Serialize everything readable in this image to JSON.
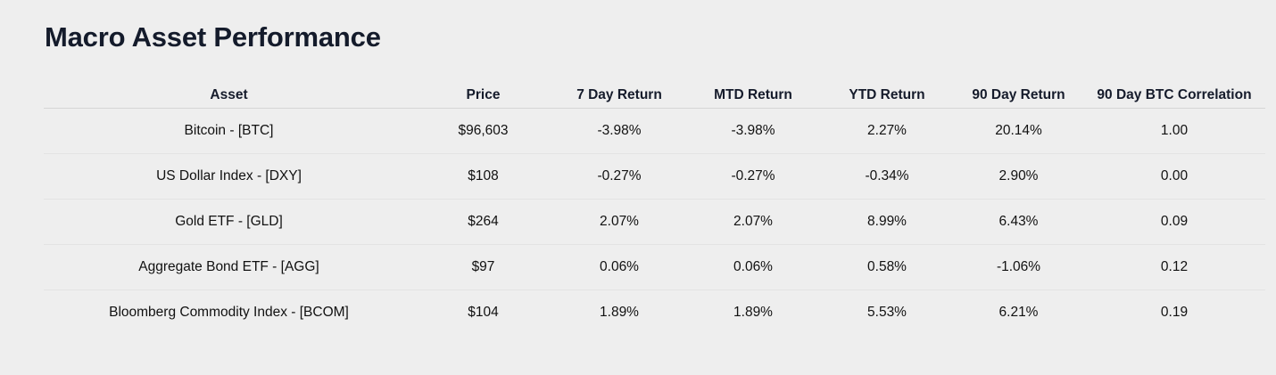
{
  "title": "Macro Asset Performance",
  "colors": {
    "background": "#eeeeee",
    "positive": "#1f7a12",
    "negative": "#e0211d",
    "heading": "#141b2b"
  },
  "table": {
    "headers": {
      "asset": "Asset",
      "price": "Price",
      "return_7d": "7 Day Return",
      "mtd": "MTD Return",
      "ytd": "YTD Return",
      "return_90d": "90 Day Return",
      "btc_corr": "90 Day BTC Correlation"
    },
    "rows": [
      {
        "asset": "Bitcoin - [BTC]",
        "price": "$96,603",
        "return_7d": "-3.98%",
        "mtd": "-3.98%",
        "ytd": "2.27%",
        "return_90d": "20.14%",
        "btc_corr": "1.00"
      },
      {
        "asset": "US Dollar Index - [DXY]",
        "price": "$108",
        "return_7d": "-0.27%",
        "mtd": "-0.27%",
        "ytd": "-0.34%",
        "return_90d": "2.90%",
        "btc_corr": "0.00"
      },
      {
        "asset": "Gold ETF - [GLD]",
        "price": "$264",
        "return_7d": "2.07%",
        "mtd": "2.07%",
        "ytd": "8.99%",
        "return_90d": "6.43%",
        "btc_corr": "0.09"
      },
      {
        "asset": "Aggregate Bond ETF - [AGG]",
        "price": "$97",
        "return_7d": "0.06%",
        "mtd": "0.06%",
        "ytd": "0.58%",
        "return_90d": "-1.06%",
        "btc_corr": "0.12"
      },
      {
        "asset": "Bloomberg Commodity Index - [BCOM]",
        "price": "$104",
        "return_7d": "1.89%",
        "mtd": "1.89%",
        "ytd": "5.53%",
        "return_90d": "6.21%",
        "btc_corr": "0.19"
      }
    ]
  }
}
